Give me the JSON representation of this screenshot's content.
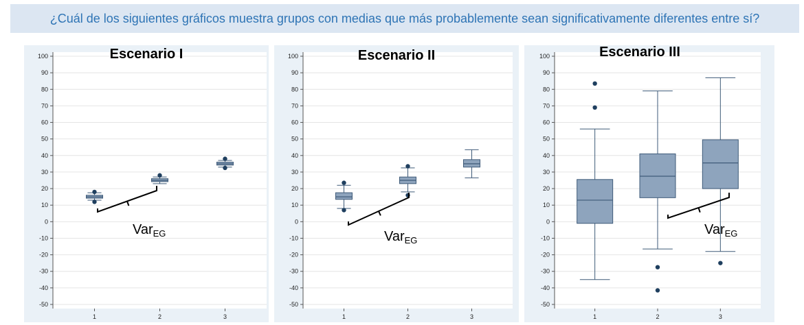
{
  "question": "¿Cuál de los siguientes gráficos muestra grupos con medias que más probablemente sean significativamente diferentes entre sí?",
  "colors": {
    "banner_bg": "#dce6f2",
    "question_text": "#2e74b5",
    "box_fill": "#8ea4bd",
    "box_stroke": "#3e5a78",
    "outlier": "#1f3f5f",
    "panel_bg": "#eaf1f7"
  },
  "var_label": {
    "main": "Var",
    "sub": "EG"
  },
  "chart_data": [
    {
      "type": "box",
      "title": "Escenario I",
      "categories": [
        "1",
        "2",
        "3"
      ],
      "ylim": [
        -50,
        100
      ],
      "yticks": [
        100,
        90,
        80,
        70,
        60,
        50,
        40,
        30,
        20,
        10,
        0,
        -10,
        -20,
        -30,
        -40,
        -50
      ],
      "grid": true,
      "boxes": [
        {
          "q1": 14.2,
          "median": 15,
          "q3": 16,
          "whisker_low": 13,
          "whisker_high": 17.5,
          "outliers": [
            18,
            12
          ]
        },
        {
          "q1": 24.2,
          "median": 25,
          "q3": 26,
          "whisker_low": 23,
          "whisker_high": 27,
          "outliers": [
            28
          ]
        },
        {
          "q1": 34.2,
          "median": 35,
          "q3": 36,
          "whisker_low": 33,
          "whisker_high": 37,
          "outliers": [
            38,
            32.5
          ]
        }
      ]
    },
    {
      "type": "box",
      "title": "Escenario II",
      "categories": [
        "1",
        "2",
        "3"
      ],
      "ylim": [
        -50,
        100
      ],
      "yticks": [
        100,
        90,
        80,
        70,
        60,
        50,
        40,
        30,
        20,
        10,
        0,
        -10,
        -20,
        -30,
        -40,
        -50
      ],
      "grid": true,
      "boxes": [
        {
          "q1": 13.5,
          "median": 15,
          "q3": 17.5,
          "whisker_low": 8,
          "whisker_high": 22,
          "outliers": [
            23.5,
            7
          ]
        },
        {
          "q1": 23,
          "median": 25,
          "q3": 27,
          "whisker_low": 18,
          "whisker_high": 32.5,
          "outliers": [
            33.5,
            16
          ]
        },
        {
          "q1": 33,
          "median": 35,
          "q3": 37.5,
          "whisker_low": 26.5,
          "whisker_high": 43.5,
          "outliers": []
        }
      ]
    },
    {
      "type": "box",
      "title": "Escenario III",
      "categories": [
        "1",
        "2",
        "3"
      ],
      "ylim": [
        -50,
        100
      ],
      "yticks": [
        100,
        90,
        80,
        70,
        60,
        50,
        40,
        30,
        20,
        10,
        0,
        -10,
        -20,
        -30,
        -40,
        -50
      ],
      "grid": true,
      "boxes": [
        {
          "q1": -1,
          "median": 13,
          "q3": 25.5,
          "whisker_low": -35,
          "whisker_high": 56,
          "outliers": [
            83.5,
            69
          ]
        },
        {
          "q1": 14.5,
          "median": 27.5,
          "q3": 41,
          "whisker_low": -16.5,
          "whisker_high": 79,
          "outliers": [
            -27.5,
            -41.5
          ]
        },
        {
          "q1": 20,
          "median": 35.5,
          "q3": 49.5,
          "whisker_low": -18,
          "whisker_high": 87,
          "outliers": [
            -25
          ]
        }
      ]
    }
  ]
}
